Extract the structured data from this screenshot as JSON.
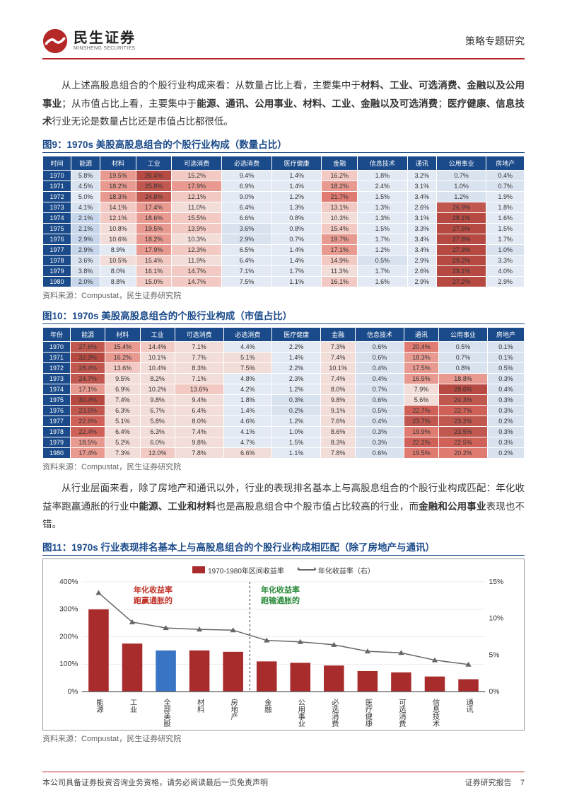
{
  "header": {
    "logo_cn": "民生证券",
    "logo_en": "MINSHENG SECURITIES",
    "subject": "策略专题研究"
  },
  "para1": "从上述高股息组合的个股行业构成来看：从数量占比上看，主要集中于",
  "para1_bold1": "材料、工业、可选消费、金融以及公用事业",
  "para1_mid": "；从市值占比上看，主要集中于",
  "para1_bold2": "能源、通讯、公用事业、材料、工业、金融以及可选消费",
  "para1_mid2": "；",
  "para1_bold3": "医疗健康、信息技术",
  "para1_end": "行业无论是数量占比还是市值占比都很低。",
  "fig9": {
    "title": "图9：1970s 美股高股息组合的个股行业构成（数量占比）",
    "headers": [
      "时间",
      "能源",
      "材料",
      "工业",
      "可选消费",
      "必选消费",
      "医疗健康",
      "金融",
      "信息技术",
      "通讯",
      "公用事业",
      "房地产"
    ],
    "rows": [
      [
        "1970",
        "5.8%",
        "19.5%",
        "26.4%",
        "15.2%",
        "9.4%",
        "1.4%",
        "16.2%",
        "1.8%",
        "3.2%",
        "0.7%",
        "0.4%"
      ],
      [
        "1971",
        "4.5%",
        "18.2%",
        "25.8%",
        "17.9%",
        "6.9%",
        "1.4%",
        "18.2%",
        "2.4%",
        "3.1%",
        "1.0%",
        "0.7%"
      ],
      [
        "1972",
        "5.0%",
        "18.3%",
        "24.8%",
        "12.1%",
        "9.0%",
        "1.2%",
        "21.7%",
        "1.5%",
        "3.4%",
        "1.2%",
        "1.9%"
      ],
      [
        "1973",
        "4.1%",
        "14.1%",
        "17.4%",
        "11.0%",
        "6.4%",
        "1.3%",
        "13.1%",
        "1.3%",
        "2.6%",
        "26.9%",
        "1.8%"
      ],
      [
        "1974",
        "2.1%",
        "12.1%",
        "18.6%",
        "15.5%",
        "6.6%",
        "0.8%",
        "10.3%",
        "1.3%",
        "3.1%",
        "28.1%",
        "1.6%"
      ],
      [
        "1975",
        "2.1%",
        "10.8%",
        "19.5%",
        "13.9%",
        "3.6%",
        "0.8%",
        "15.4%",
        "1.5%",
        "3.3%",
        "27.5%",
        "1.5%"
      ],
      [
        "1976",
        "2.9%",
        "10.6%",
        "18.2%",
        "10.3%",
        "2.9%",
        "0.7%",
        "19.7%",
        "1.7%",
        "3.4%",
        "27.8%",
        "1.7%"
      ],
      [
        "1977",
        "2.9%",
        "8.9%",
        "17.9%",
        "12.3%",
        "6.5%",
        "1.4%",
        "17.1%",
        "1.2%",
        "3.4%",
        "27.3%",
        "1.0%"
      ],
      [
        "1978",
        "3.6%",
        "10.5%",
        "15.4%",
        "11.9%",
        "6.4%",
        "1.4%",
        "14.9%",
        "0.5%",
        "2.9%",
        "29.2%",
        "3.3%"
      ],
      [
        "1979",
        "3.8%",
        "8.0%",
        "16.1%",
        "14.7%",
        "7.1%",
        "1.7%",
        "11.3%",
        "1.7%",
        "2.6%",
        "29.1%",
        "4.0%"
      ],
      [
        "1980",
        "2.0%",
        "8.8%",
        "15.0%",
        "14.7%",
        "7.5%",
        "1.1%",
        "16.1%",
        "1.6%",
        "2.9%",
        "27.2%",
        "2.9%"
      ]
    ],
    "colors": [
      [
        "#d9e3f0",
        "#e89a91",
        "#b64a42",
        "#f2c9c3",
        "#e4eaf3",
        "#e4eaf3",
        "#f2c9c3",
        "#e4eaf3",
        "#e4eaf3",
        "#d9e3f0",
        "#d9e3f0"
      ],
      [
        "#d9e3f0",
        "#e89a91",
        "#c15850",
        "#e89a91",
        "#e4eaf3",
        "#e4eaf3",
        "#e89a91",
        "#e4eaf3",
        "#e4eaf3",
        "#d9e3f0",
        "#d9e3f0"
      ],
      [
        "#e4eaf3",
        "#e89a91",
        "#c15850",
        "#f2c9c3",
        "#e4eaf3",
        "#e4eaf3",
        "#e07b71",
        "#e4eaf3",
        "#e4eaf3",
        "#d9e3f0",
        "#e4eaf3"
      ],
      [
        "#d9e3f0",
        "#f2c9c3",
        "#e89a91",
        "#f2ddd9",
        "#e4eaf3",
        "#e4eaf3",
        "#f2c9c3",
        "#e4eaf3",
        "#e4eaf3",
        "#c15850",
        "#e4eaf3"
      ],
      [
        "#c7d6eb",
        "#f2c9c3",
        "#e89a91",
        "#f2c9c3",
        "#e4eaf3",
        "#e4eaf3",
        "#f2ddd9",
        "#e4eaf3",
        "#e4eaf3",
        "#b64a42",
        "#e4eaf3"
      ],
      [
        "#c7d6eb",
        "#f2ddd9",
        "#e89a91",
        "#f2c9c3",
        "#d9e3f0",
        "#e4eaf3",
        "#f2c9c3",
        "#e4eaf3",
        "#e4eaf3",
        "#b64a42",
        "#e4eaf3"
      ],
      [
        "#c7d6eb",
        "#f2ddd9",
        "#e89a91",
        "#f2ddd9",
        "#d9e3f0",
        "#e4eaf3",
        "#e89a91",
        "#e4eaf3",
        "#e4eaf3",
        "#b64a42",
        "#e4eaf3"
      ],
      [
        "#c7d6eb",
        "#e4eaf3",
        "#e89a91",
        "#f2c9c3",
        "#e4eaf3",
        "#e4eaf3",
        "#e89a91",
        "#e4eaf3",
        "#e4eaf3",
        "#b64a42",
        "#d9e3f0"
      ],
      [
        "#d9e3f0",
        "#f2ddd9",
        "#f2c9c3",
        "#f2ddd9",
        "#e4eaf3",
        "#e4eaf3",
        "#f2c9c3",
        "#d9e3f0",
        "#e4eaf3",
        "#b64a42",
        "#e4eaf3"
      ],
      [
        "#d9e3f0",
        "#e4eaf3",
        "#f2c9c3",
        "#f2c9c3",
        "#e4eaf3",
        "#e4eaf3",
        "#f2ddd9",
        "#e4eaf3",
        "#e4eaf3",
        "#b64a42",
        "#e4eaf3"
      ],
      [
        "#c7d6eb",
        "#e4eaf3",
        "#f2c9c3",
        "#f2c9c3",
        "#e4eaf3",
        "#e4eaf3",
        "#f2c9c3",
        "#e4eaf3",
        "#e4eaf3",
        "#b64a42",
        "#e4eaf3"
      ]
    ],
    "source": "资料来源：Compustat，民生证券研究院"
  },
  "fig10": {
    "title": "图10：1970s 美股高股息组合的个股行业构成（市值占比）",
    "headers": [
      "年份",
      "能源",
      "材料",
      "工业",
      "可选消费",
      "必选消费",
      "医疗健康",
      "金融",
      "信息技术",
      "通讯",
      "公用事业",
      "房地产"
    ],
    "rows": [
      [
        "1970",
        "27.6%",
        "15.4%",
        "14.4%",
        "7.1%",
        "4.4%",
        "2.2%",
        "7.3%",
        "0.6%",
        "20.4%",
        "0.5%",
        "0.1%"
      ],
      [
        "1971",
        "32.3%",
        "16.2%",
        "10.1%",
        "7.7%",
        "5.1%",
        "1.4%",
        "7.4%",
        "0.6%",
        "18.3%",
        "0.7%",
        "0.1%"
      ],
      [
        "1972",
        "28.4%",
        "13.6%",
        "10.4%",
        "8.3%",
        "7.5%",
        "2.2%",
        "10.1%",
        "0.4%",
        "17.5%",
        "0.8%",
        "0.5%"
      ],
      [
        "1973",
        "24.7%",
        "9.5%",
        "8.2%",
        "7.1%",
        "4.8%",
        "2.3%",
        "7.4%",
        "0.4%",
        "16.5%",
        "18.8%",
        "0.3%"
      ],
      [
        "1974",
        "17.1%",
        "6.9%",
        "10.2%",
        "13.6%",
        "4.2%",
        "1.2%",
        "8.0%",
        "0.7%",
        "7.9%",
        "29.6%",
        "0.4%"
      ],
      [
        "1975",
        "30.4%",
        "7.4%",
        "9.8%",
        "9.4%",
        "1.8%",
        "0.3%",
        "9.8%",
        "0.6%",
        "5.6%",
        "24.3%",
        "0.3%"
      ],
      [
        "1976",
        "23.5%",
        "6.3%",
        "6.7%",
        "6.4%",
        "1.4%",
        "0.2%",
        "9.1%",
        "0.5%",
        "22.7%",
        "22.7%",
        "0.3%"
      ],
      [
        "1977",
        "22.6%",
        "5.1%",
        "5.8%",
        "8.0%",
        "4.6%",
        "1.2%",
        "7.6%",
        "0.4%",
        "23.7%",
        "23.2%",
        "0.2%"
      ],
      [
        "1978",
        "22.4%",
        "6.4%",
        "6.3%",
        "7.4%",
        "4.1%",
        "1.0%",
        "8.6%",
        "0.3%",
        "19.9%",
        "23.5%",
        "0.3%"
      ],
      [
        "1979",
        "18.5%",
        "5.2%",
        "6.0%",
        "9.8%",
        "4.7%",
        "1.5%",
        "8.3%",
        "0.3%",
        "22.2%",
        "22.5%",
        "0.3%"
      ],
      [
        "1980",
        "17.4%",
        "7.3%",
        "12.0%",
        "7.8%",
        "6.6%",
        "1.1%",
        "7.8%",
        "0.6%",
        "19.5%",
        "20.2%",
        "0.2%"
      ]
    ],
    "colors": [
      [
        "#c15850",
        "#e89a91",
        "#f2c9c3",
        "#f2ddd9",
        "#e4eaf3",
        "#e4eaf3",
        "#f2ddd9",
        "#d9e3f0",
        "#e07b71",
        "#d9e3f0",
        "#d9e3f0"
      ],
      [
        "#b64a42",
        "#e89a91",
        "#f2ddd9",
        "#f2ddd9",
        "#f2ddd9",
        "#e4eaf3",
        "#f2ddd9",
        "#d9e3f0",
        "#e89a91",
        "#d9e3f0",
        "#d9e3f0"
      ],
      [
        "#c15850",
        "#f2c9c3",
        "#f2ddd9",
        "#f2ddd9",
        "#f2ddd9",
        "#e4eaf3",
        "#f2ddd9",
        "#d9e3f0",
        "#e89a91",
        "#d9e3f0",
        "#d9e3f0"
      ],
      [
        "#c15850",
        "#f2ddd9",
        "#f2ddd9",
        "#f2ddd9",
        "#e4eaf3",
        "#e4eaf3",
        "#f2ddd9",
        "#d9e3f0",
        "#e89a91",
        "#e89a91",
        "#d9e3f0"
      ],
      [
        "#e89a91",
        "#f2ddd9",
        "#f2ddd9",
        "#f2c9c3",
        "#e4eaf3",
        "#e4eaf3",
        "#f2ddd9",
        "#d9e3f0",
        "#f2ddd9",
        "#b64a42",
        "#d9e3f0"
      ],
      [
        "#b64a42",
        "#f2ddd9",
        "#f2ddd9",
        "#f2ddd9",
        "#e4eaf3",
        "#d9e3f0",
        "#f2ddd9",
        "#d9e3f0",
        "#f2ddd9",
        "#c15850",
        "#d9e3f0"
      ],
      [
        "#c15850",
        "#f2ddd9",
        "#f2ddd9",
        "#f2ddd9",
        "#e4eaf3",
        "#d9e3f0",
        "#f2ddd9",
        "#d9e3f0",
        "#d06158",
        "#d06158",
        "#d9e3f0"
      ],
      [
        "#d06158",
        "#f2ddd9",
        "#f2ddd9",
        "#f2ddd9",
        "#e4eaf3",
        "#e4eaf3",
        "#f2ddd9",
        "#d9e3f0",
        "#c15850",
        "#c15850",
        "#d9e3f0"
      ],
      [
        "#d06158",
        "#f2ddd9",
        "#f2ddd9",
        "#f2ddd9",
        "#e4eaf3",
        "#e4eaf3",
        "#f2ddd9",
        "#d9e3f0",
        "#e07b71",
        "#c15850",
        "#d9e3f0"
      ],
      [
        "#e89a91",
        "#f2ddd9",
        "#f2ddd9",
        "#f2ddd9",
        "#e4eaf3",
        "#e4eaf3",
        "#f2ddd9",
        "#d9e3f0",
        "#d06158",
        "#d06158",
        "#d9e3f0"
      ],
      [
        "#e89a91",
        "#f2ddd9",
        "#f2c9c3",
        "#f2ddd9",
        "#f2ddd9",
        "#e4eaf3",
        "#f2ddd9",
        "#d9e3f0",
        "#e07b71",
        "#e07b71",
        "#d9e3f0"
      ]
    ],
    "source": "资料来源：Compustat，民生证券研究院"
  },
  "para2_start": "从行业层面来看，除了房地产和通讯以外，行业的表现排名基本上与高股息组合的个股行业构成匹配：年化收益率跑赢通胀的行业中",
  "para2_bold1": "能源、工业和材料",
  "para2_mid": "也是高股息组合中个股市值占比较高的行业，而",
  "para2_bold2": "金融和公用事业",
  "para2_end": "表现也不错。",
  "fig11": {
    "title": "图11：1970s 行业表现排名基本上与高股息组合的个股行业构成相匹配（除了房地产与通讯）",
    "legend_bar": "1970-1980年区间收益率",
    "legend_line": "年化收益率（右）",
    "annot1_l1": "年化收益率",
    "annot1_l2": "跑赢通胀的",
    "annot2_l1": "年化收益率",
    "annot2_l2": "跑输通胀的",
    "categories": [
      "能源",
      "工业",
      "全部美股",
      "材料",
      "房地产",
      "金融",
      "公用事业",
      "必选消费",
      "医疗健康",
      "可选消费",
      "信息技术",
      "通讯"
    ],
    "bar_values": [
      300,
      175,
      150,
      150,
      145,
      110,
      105,
      95,
      75,
      70,
      55,
      45
    ],
    "bar_colors": [
      "#a82c2c",
      "#a82c2c",
      "#3a74c4",
      "#a82c2c",
      "#a82c2c",
      "#a82c2c",
      "#a82c2c",
      "#a82c2c",
      "#a82c2c",
      "#a82c2c",
      "#a82c2c",
      "#a82c2c"
    ],
    "line_values": [
      13.5,
      9.5,
      8.7,
      8.5,
      8.4,
      7.0,
      6.8,
      6.4,
      5.5,
      5.3,
      4.3,
      3.7
    ],
    "y_left": {
      "max": 400,
      "step": 100,
      "ticks": [
        "0%",
        "100%",
        "200%",
        "300%",
        "400%"
      ]
    },
    "y_right": {
      "max": 15,
      "step": 5,
      "ticks": [
        "0%",
        "5%",
        "10%",
        "15%"
      ]
    },
    "source": "资料来源：Compustat，民生证券研究院"
  },
  "footer": {
    "left": "本公司具备证券投资咨询业务资格，请务必阅读最后一页免责声明",
    "right_label": "证券研究报告",
    "page": "7"
  }
}
